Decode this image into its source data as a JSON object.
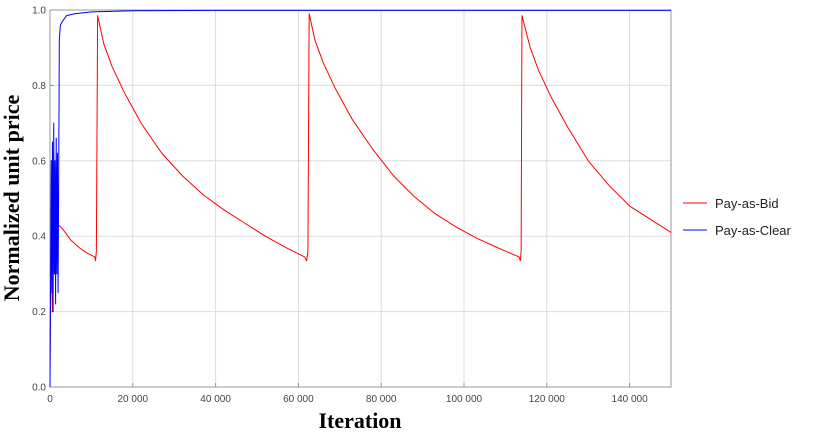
{
  "chart_data": {
    "type": "line",
    "title": "",
    "xlabel": "Iteration",
    "ylabel": "Normalized unit price",
    "xlim": [
      0,
      150000
    ],
    "ylim": [
      0,
      1.0
    ],
    "x_ticks": [
      0,
      20000,
      40000,
      60000,
      80000,
      100000,
      120000,
      140000
    ],
    "x_tick_labels": [
      "0",
      "20 000",
      "40 000",
      "60 000",
      "80 000",
      "100 000",
      "120 000",
      "140 000"
    ],
    "y_ticks": [
      0,
      0.2,
      0.4,
      0.6,
      0.8,
      1.0
    ],
    "y_tick_labels": [
      "0.0",
      "0.2",
      "0.4",
      "0.6",
      "0.8",
      "1.0"
    ],
    "grid": true,
    "legend_position": "right",
    "series": [
      {
        "name": "Pay-as-Bid",
        "color": "#ff0000",
        "points": [
          [
            0,
            0.05
          ],
          [
            300,
            0.42
          ],
          [
            600,
            0.2
          ],
          [
            900,
            0.5
          ],
          [
            1200,
            0.3
          ],
          [
            1500,
            0.47
          ],
          [
            2000,
            0.43
          ],
          [
            3000,
            0.42
          ],
          [
            5000,
            0.39
          ],
          [
            7000,
            0.37
          ],
          [
            9000,
            0.355
          ],
          [
            10800,
            0.345
          ],
          [
            11000,
            0.335
          ],
          [
            11200,
            0.36
          ],
          [
            11500,
            0.985
          ],
          [
            13000,
            0.91
          ],
          [
            15000,
            0.85
          ],
          [
            18000,
            0.78
          ],
          [
            22000,
            0.7
          ],
          [
            27000,
            0.62
          ],
          [
            32000,
            0.56
          ],
          [
            37000,
            0.51
          ],
          [
            42000,
            0.47
          ],
          [
            47000,
            0.435
          ],
          [
            52000,
            0.4
          ],
          [
            57000,
            0.37
          ],
          [
            61500,
            0.345
          ],
          [
            62000,
            0.335
          ],
          [
            62300,
            0.36
          ],
          [
            62600,
            0.99
          ],
          [
            64000,
            0.92
          ],
          [
            66000,
            0.86
          ],
          [
            69000,
            0.79
          ],
          [
            73000,
            0.71
          ],
          [
            78000,
            0.63
          ],
          [
            83000,
            0.56
          ],
          [
            88000,
            0.505
          ],
          [
            93000,
            0.46
          ],
          [
            98000,
            0.425
          ],
          [
            103000,
            0.395
          ],
          [
            108000,
            0.37
          ],
          [
            113300,
            0.345
          ],
          [
            113600,
            0.335
          ],
          [
            113800,
            0.36
          ],
          [
            114000,
            0.985
          ],
          [
            116000,
            0.9
          ],
          [
            118000,
            0.84
          ],
          [
            121000,
            0.77
          ],
          [
            125000,
            0.69
          ],
          [
            130000,
            0.6
          ],
          [
            135000,
            0.535
          ],
          [
            140000,
            0.48
          ],
          [
            145000,
            0.445
          ],
          [
            150000,
            0.41
          ]
        ]
      },
      {
        "name": "Pay-as-Clear",
        "color": "#0000ff",
        "points": [
          [
            0,
            0.0
          ],
          [
            150,
            0.3
          ],
          [
            300,
            0.6
          ],
          [
            450,
            0.25
          ],
          [
            600,
            0.65
          ],
          [
            750,
            0.2
          ],
          [
            900,
            0.7
          ],
          [
            1050,
            0.3
          ],
          [
            1200,
            0.6
          ],
          [
            1350,
            0.22
          ],
          [
            1500,
            0.66
          ],
          [
            1650,
            0.3
          ],
          [
            1800,
            0.62
          ],
          [
            1950,
            0.25
          ],
          [
            2100,
            0.55
          ],
          [
            2250,
            0.92
          ],
          [
            2500,
            0.96
          ],
          [
            3000,
            0.97
          ],
          [
            4000,
            0.985
          ],
          [
            6000,
            0.99
          ],
          [
            10000,
            0.995
          ],
          [
            20000,
            0.998
          ],
          [
            40000,
            0.999
          ],
          [
            80000,
            0.999
          ],
          [
            150000,
            0.999
          ]
        ]
      }
    ]
  }
}
